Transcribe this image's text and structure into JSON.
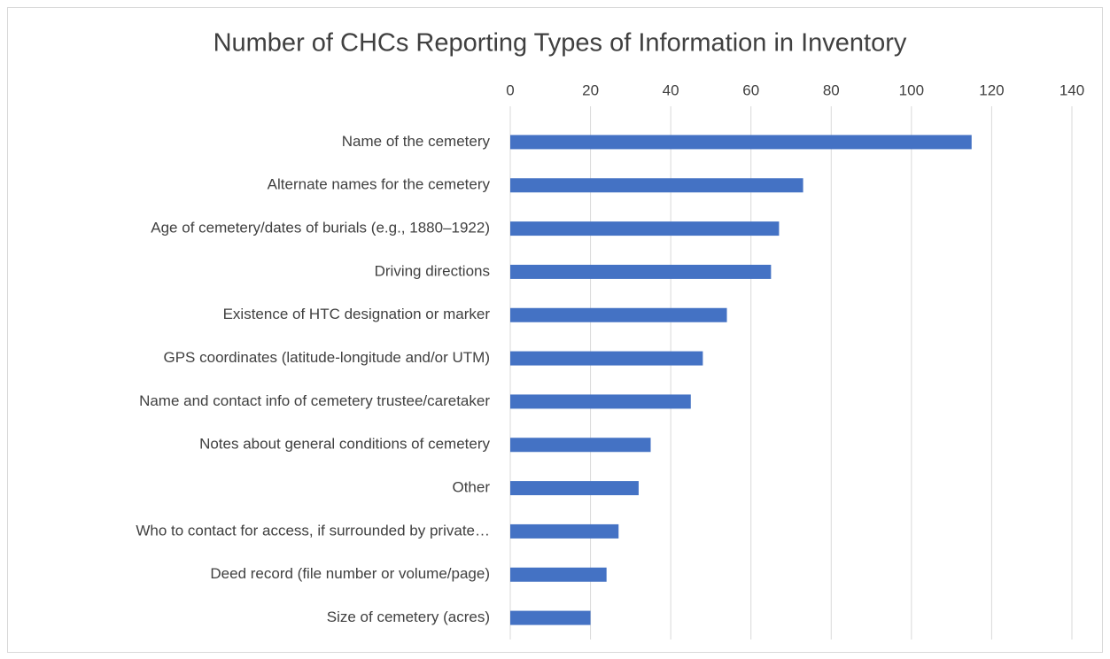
{
  "chart_data": {
    "type": "bar",
    "orientation": "horizontal",
    "title": "Number of CHCs Reporting Types of  Information in Inventory",
    "categories": [
      "Name of the cemetery",
      "Alternate names for the cemetery",
      "Age of cemetery/dates of burials (e.g., 1880–1922)",
      "Driving directions",
      "Existence of HTC designation or marker",
      "GPS coordinates (latitude-longitude and/or UTM)",
      "Name and contact info of cemetery trustee/caretaker",
      "Notes about general conditions of cemetery",
      "Other",
      "Who to contact for access, if surrounded by private…",
      "Deed record (file number or volume/page)",
      "Size of cemetery (acres)"
    ],
    "values": [
      115,
      73,
      67,
      65,
      54,
      48,
      45,
      35,
      32,
      27,
      24,
      20
    ],
    "color": "#4472c4",
    "xlim": [
      0,
      140
    ],
    "xticks": [
      0,
      20,
      40,
      60,
      80,
      100,
      120,
      140
    ],
    "grid": true
  }
}
